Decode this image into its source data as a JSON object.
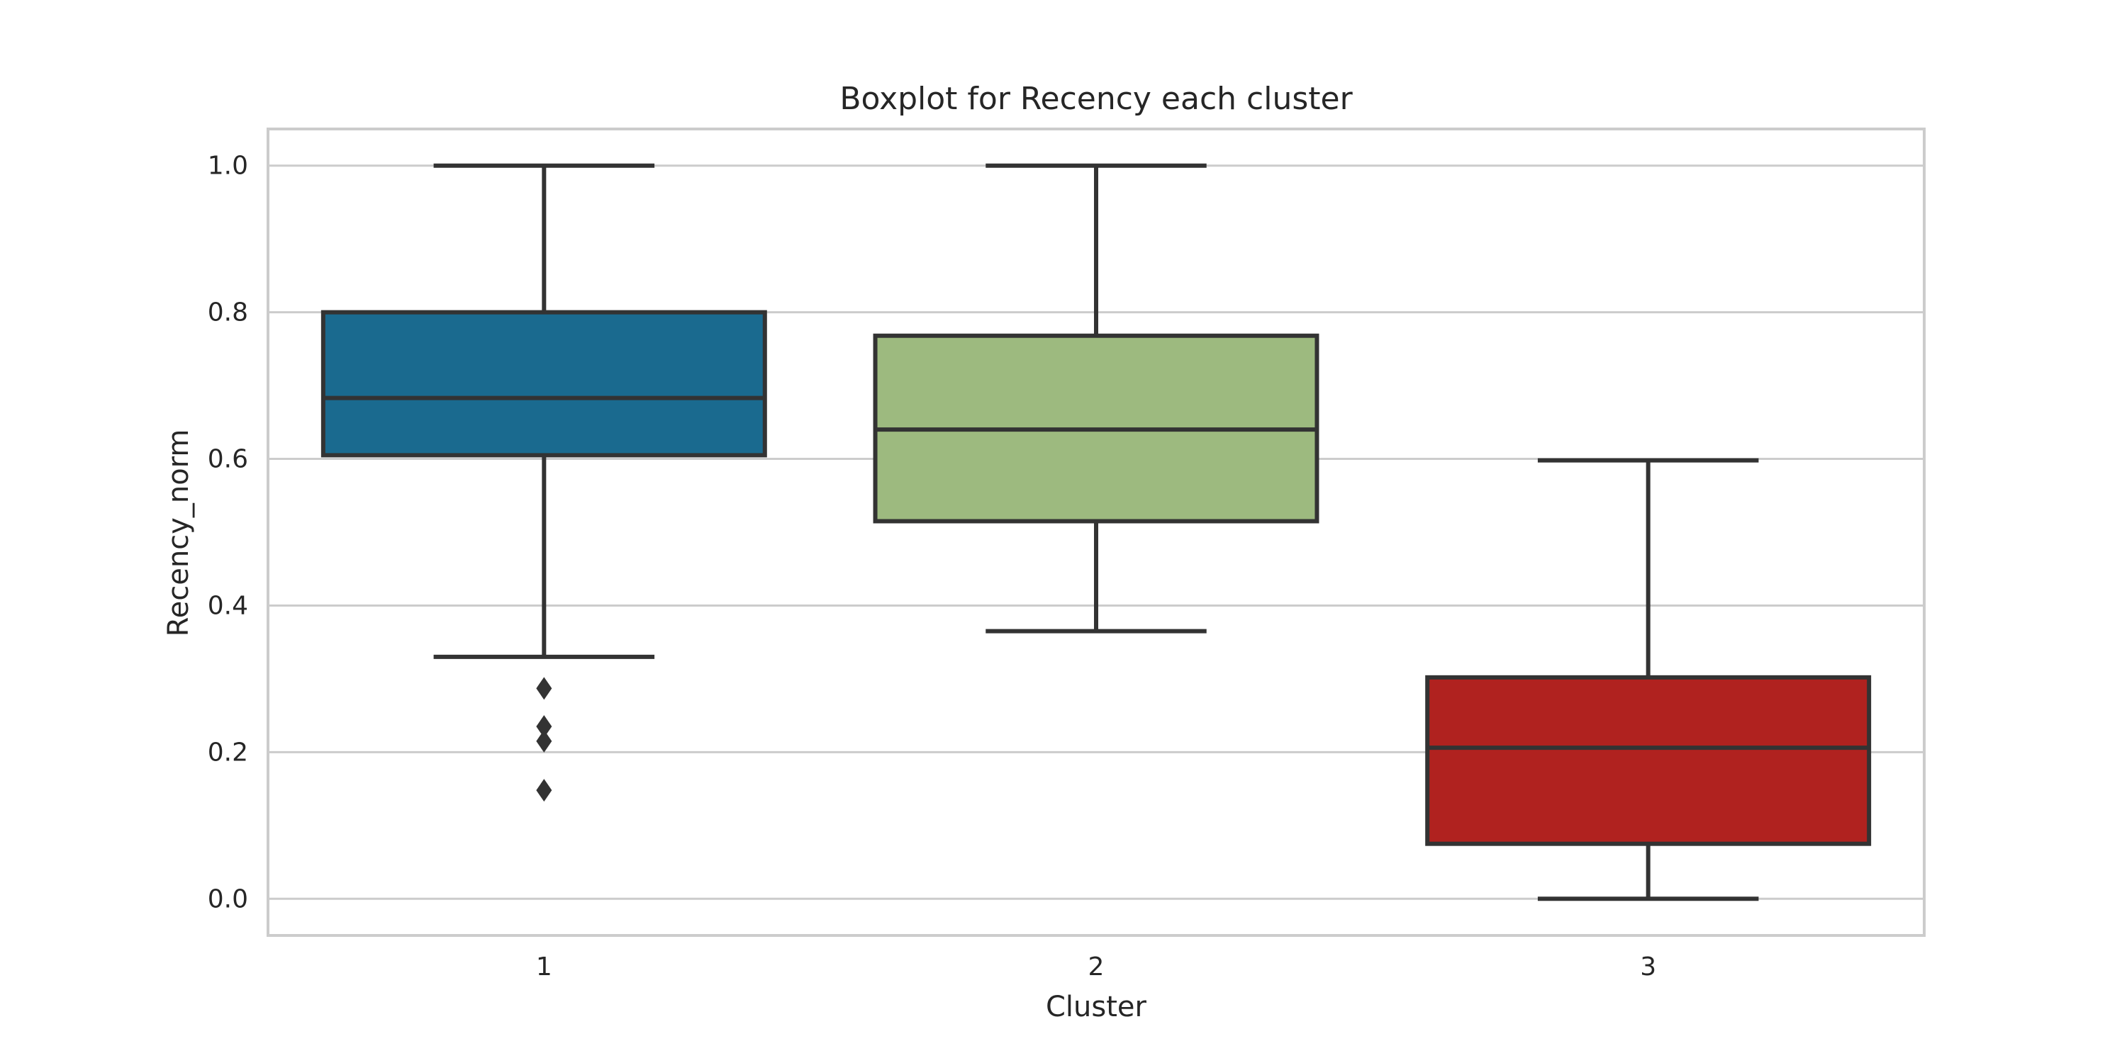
{
  "chart_data": {
    "type": "box",
    "title": "Boxplot for Recency each cluster",
    "xlabel": "Cluster",
    "ylabel": "Recency_norm",
    "ylim": [
      -0.05,
      1.05
    ],
    "yticks": [
      "0.0",
      "0.2",
      "0.4",
      "0.6",
      "0.8",
      "1.0"
    ],
    "grid": "horizontal",
    "categories": [
      "1",
      "2",
      "3"
    ],
    "boxes": [
      {
        "category": "1",
        "whisker_low": 0.33,
        "q1": 0.605,
        "median": 0.683,
        "q3": 0.8,
        "whisker_high": 1.0,
        "outliers": [
          0.287,
          0.235,
          0.215,
          0.148
        ],
        "color": "#1a6a8f"
      },
      {
        "category": "2",
        "whisker_low": 0.365,
        "q1": 0.515,
        "median": 0.64,
        "q3": 0.768,
        "whisker_high": 1.0,
        "outliers": [],
        "color": "#9dba7f"
      },
      {
        "category": "3",
        "whisker_low": 0.0,
        "q1": 0.075,
        "median": 0.206,
        "q3": 0.302,
        "whisker_high": 0.598,
        "outliers": [],
        "color": "#b0221f"
      }
    ]
  }
}
